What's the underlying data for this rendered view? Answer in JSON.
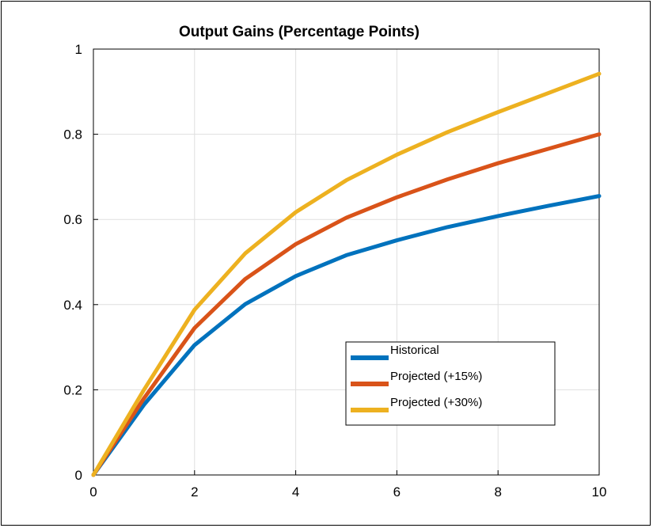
{
  "chart_data": {
    "type": "line",
    "title": "Output Gains (Percentage Points)",
    "xlabel": "",
    "ylabel": "",
    "xlim": [
      0,
      10
    ],
    "ylim": [
      0,
      1
    ],
    "xticks": [
      0,
      2,
      4,
      6,
      8,
      10
    ],
    "yticks": [
      0,
      0.2,
      0.4,
      0.6,
      0.8,
      1
    ],
    "grid": true,
    "legend_position": "lower-right",
    "x": [
      0,
      1,
      2,
      3,
      4,
      5,
      6,
      7,
      8,
      9,
      10
    ],
    "series": [
      {
        "name": "Historical",
        "color": "#0072BD",
        "values": [
          0,
          0.165,
          0.305,
          0.401,
          0.467,
          0.516,
          0.551,
          0.582,
          0.608,
          0.632,
          0.655
        ]
      },
      {
        "name": "Projected (+15%)",
        "color": "#D95319",
        "values": [
          0,
          0.18,
          0.345,
          0.46,
          0.542,
          0.604,
          0.652,
          0.694,
          0.732,
          0.766,
          0.8
        ]
      },
      {
        "name": "Projected (+30%)",
        "color": "#EDB120",
        "values": [
          0,
          0.2,
          0.388,
          0.52,
          0.617,
          0.692,
          0.752,
          0.805,
          0.852,
          0.897,
          0.942
        ]
      }
    ]
  }
}
